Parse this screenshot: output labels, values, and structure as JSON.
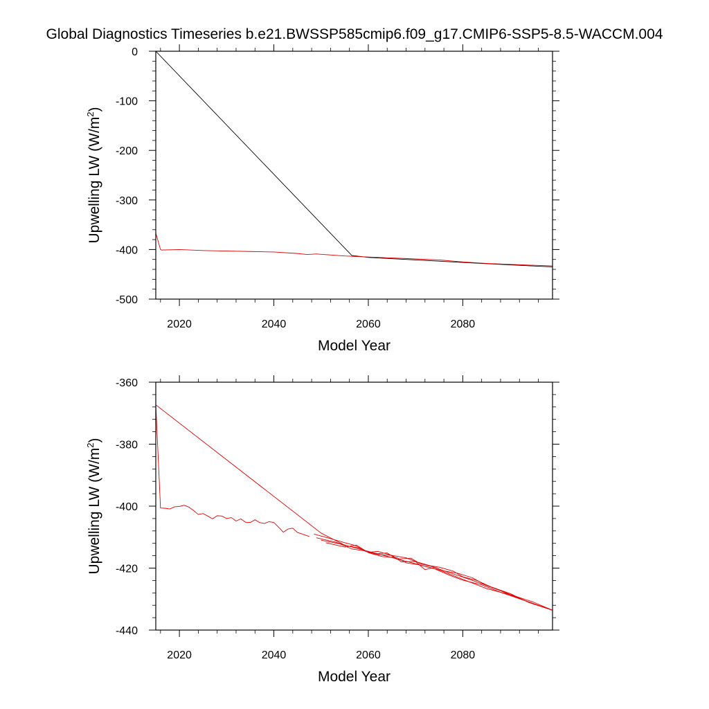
{
  "title": "Global Diagnostics Timeseries b.e21.BWSSP585cmip6.f09_g17.CMIP6-SSP5-8.5-WACCM.004",
  "chart_data": [
    {
      "type": "line",
      "xlabel": "Model Year",
      "ylabel_main": "Upwelling LW (W/m",
      "ylabel_sup": "2",
      "ylabel_end": ")",
      "xlim": [
        2015,
        2099
      ],
      "ylim": [
        -500,
        0
      ],
      "xticks": [
        2020,
        2040,
        2060,
        2080
      ],
      "xtick_labels": [
        "2020",
        "2040",
        "2060",
        "2080"
      ],
      "yticks": [
        0,
        -100,
        -200,
        -300,
        -400,
        -500
      ],
      "ytick_labels": [
        "0",
        "-100",
        "-200",
        "-300",
        "-400",
        "-500"
      ],
      "series": [
        {
          "color": "#000000",
          "x": [
            2015,
            2056.5,
            2060,
            2070,
            2080,
            2090,
            2099
          ],
          "y": [
            0,
            -412,
            -416,
            -421,
            -426,
            -431,
            -435
          ]
        },
        {
          "color": "#e00000",
          "x": [
            2015,
            2016,
            2016.2,
            2020,
            2025,
            2030,
            2035,
            2040,
            2045,
            2047,
            2049,
            2055,
            2060,
            2065,
            2070,
            2075,
            2080,
            2085,
            2090,
            2099
          ],
          "y": [
            -367,
            -400,
            -401,
            -400,
            -402,
            -403,
            -404,
            -405,
            -408,
            -410,
            -409,
            -413,
            -415,
            -417,
            -419,
            -421,
            -425,
            -428,
            -430,
            -433
          ]
        }
      ]
    },
    {
      "type": "line",
      "xlabel": "Model Year",
      "ylabel_main": "Upwelling LW (W/m",
      "ylabel_sup": "2",
      "ylabel_end": ")",
      "xlim": [
        2015,
        2099
      ],
      "ylim": [
        -440,
        -360
      ],
      "xticks": [
        2020,
        2040,
        2060,
        2080
      ],
      "xtick_labels": [
        "2020",
        "2040",
        "2060",
        "2080"
      ],
      "yticks": [
        -360,
        -380,
        -400,
        -420,
        -440
      ],
      "ytick_labels": [
        "-360",
        "-380",
        "-400",
        "-420",
        "-440"
      ],
      "series": [
        {
          "color": "#e00000",
          "x": [
            2015,
            2016,
            2017,
            2018,
            2019,
            2020,
            2021,
            2022,
            2023,
            2024,
            2025,
            2026,
            2027,
            2028,
            2029,
            2030,
            2031,
            2032,
            2033,
            2034,
            2035,
            2036,
            2037,
            2038,
            2039,
            2040,
            2041,
            2042,
            2043,
            2044,
            2045,
            2046,
            2047.5
          ],
          "y": [
            -367.3,
            -400.6,
            -400.7,
            -400.9,
            -400.2,
            -400.1,
            -399.7,
            -400.3,
            -401.4,
            -402.7,
            -402.4,
            -403.2,
            -404.1,
            -403.1,
            -403.2,
            -404.0,
            -403.7,
            -404.8,
            -404.1,
            -405.2,
            -405.3,
            -404.4,
            -405.3,
            -405.6,
            -405.0,
            -405.3,
            -406.8,
            -408.4,
            -407.4,
            -407.1,
            -408.5,
            -409.0,
            -409.8
          ]
        },
        {
          "color": "#e00000",
          "x": [
            2015,
            2050,
            2055,
            2060,
            2065,
            2070,
            2075,
            2080,
            2085,
            2090,
            2095,
            2099
          ],
          "y": [
            -367.3,
            -408.7,
            -412.6,
            -414.6,
            -416.6,
            -418.6,
            -420.6,
            -423.6,
            -426.6,
            -428.6,
            -431.6,
            -433.6
          ]
        },
        {
          "color": "#e00000",
          "x": [
            2048.5,
            2052,
            2055,
            2057,
            2060,
            2062,
            2065,
            2068,
            2070,
            2073,
            2075,
            2078,
            2080,
            2083,
            2086,
            2090,
            2094,
            2099
          ],
          "y": [
            -409.0,
            -410.5,
            -411.8,
            -412.6,
            -414.9,
            -414.6,
            -415.9,
            -416.7,
            -417.9,
            -419.2,
            -419.7,
            -421.0,
            -422.8,
            -424.0,
            -426.1,
            -428.2,
            -431.1,
            -433.6
          ]
        },
        {
          "color": "#e00000",
          "x": [
            2049,
            2053,
            2056,
            2058,
            2061,
            2064,
            2066,
            2069,
            2071,
            2074,
            2076,
            2079,
            2082,
            2085,
            2088,
            2091,
            2095,
            2099
          ],
          "y": [
            -410.2,
            -411.6,
            -413.0,
            -413.5,
            -415.5,
            -415.1,
            -417.1,
            -416.8,
            -418.6,
            -419.7,
            -420.9,
            -421.7,
            -423.1,
            -425.6,
            -427.3,
            -429.2,
            -431.5,
            -433.6
          ]
        },
        {
          "color": "#e00000",
          "x": [
            2050,
            2054,
            2056.5,
            2059,
            2062,
            2065,
            2067,
            2070,
            2072,
            2074,
            2077,
            2080,
            2083,
            2087,
            2090,
            2095,
            2099
          ],
          "y": [
            -411.0,
            -412.2,
            -413.8,
            -414.4,
            -415.6,
            -415.9,
            -418.0,
            -417.9,
            -420.5,
            -419.8,
            -421.4,
            -422.9,
            -424.5,
            -426.6,
            -428.5,
            -431.0,
            -433.6
          ]
        },
        {
          "color": "#e00000",
          "x": [
            2051,
            2055,
            2057.5,
            2060,
            2063,
            2066,
            2068,
            2071,
            2074,
            2077,
            2080,
            2084,
            2088,
            2092,
            2096,
            2099
          ],
          "y": [
            -411.8,
            -413.2,
            -412.6,
            -415.0,
            -416.3,
            -416.6,
            -418.3,
            -419.0,
            -420.2,
            -422.2,
            -423.9,
            -425.4,
            -427.8,
            -429.9,
            -432.0,
            -433.6
          ]
        }
      ]
    }
  ]
}
